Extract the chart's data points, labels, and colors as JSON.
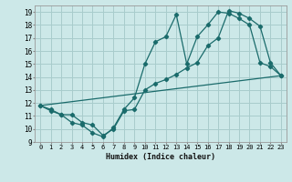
{
  "xlabel": "Humidex (Indice chaleur)",
  "xlim": [
    -0.5,
    23.5
  ],
  "ylim": [
    9,
    19.5
  ],
  "xticks": [
    0,
    1,
    2,
    3,
    4,
    5,
    6,
    7,
    8,
    9,
    10,
    11,
    12,
    13,
    14,
    15,
    16,
    17,
    18,
    19,
    20,
    21,
    22,
    23
  ],
  "yticks": [
    9,
    10,
    11,
    12,
    13,
    14,
    15,
    16,
    17,
    18,
    19
  ],
  "background_color": "#cce8e8",
  "grid_color": "#a8cccc",
  "line_color": "#1a6b6b",
  "line1_x": [
    0,
    1,
    2,
    3,
    4,
    5,
    6,
    7,
    8,
    9,
    10,
    11,
    12,
    13,
    14,
    15,
    16,
    17,
    18,
    19,
    20,
    21,
    22,
    23
  ],
  "line1_y": [
    11.8,
    11.4,
    11.1,
    10.5,
    10.3,
    9.7,
    9.4,
    10.1,
    11.5,
    12.4,
    15.0,
    16.7,
    17.1,
    18.8,
    15.0,
    17.1,
    18.0,
    19.0,
    18.9,
    18.5,
    18.0,
    15.1,
    14.8,
    14.1
  ],
  "line2_x": [
    0,
    1,
    2,
    3,
    4,
    5,
    6,
    7,
    8,
    9,
    10,
    11,
    12,
    13,
    14,
    15,
    16,
    17,
    18,
    19,
    20,
    21,
    22,
    23
  ],
  "line2_y": [
    11.8,
    11.5,
    11.1,
    11.1,
    10.5,
    10.3,
    9.5,
    10.0,
    11.4,
    11.5,
    13.0,
    13.5,
    13.8,
    14.2,
    14.7,
    15.1,
    16.4,
    17.0,
    19.1,
    18.9,
    18.5,
    17.9,
    15.1,
    14.1
  ],
  "line3_x": [
    0,
    23
  ],
  "line3_y": [
    11.8,
    14.1
  ]
}
